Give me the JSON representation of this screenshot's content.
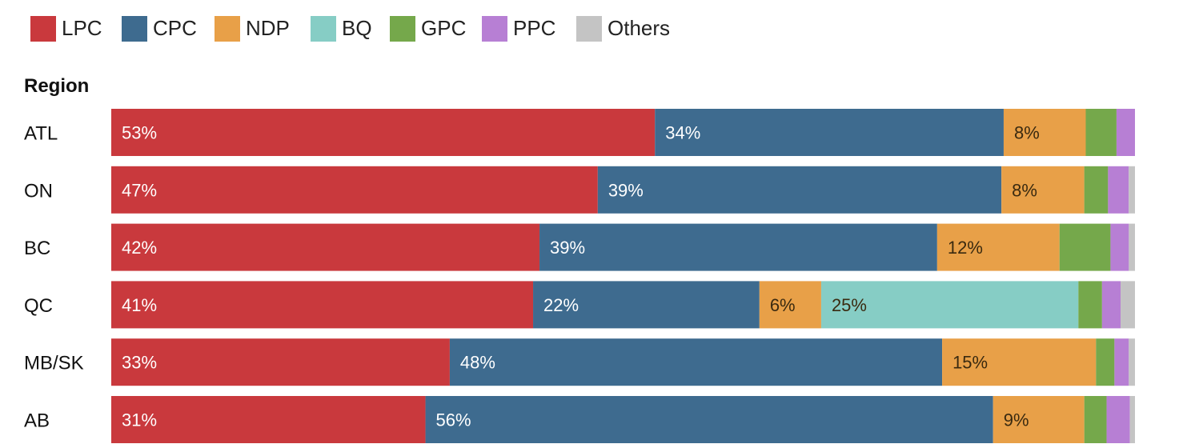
{
  "chart_data": {
    "type": "bar",
    "orientation": "horizontal",
    "stacked": true,
    "title": "",
    "ylabel": "Region",
    "xlim": [
      0,
      100
    ],
    "legend": "top-left",
    "grid": false,
    "categories": [
      "ATL",
      "ON",
      "BC",
      "QC",
      "MB/SK",
      "AB"
    ],
    "series": [
      {
        "name": "LPC",
        "color": "#c9393d",
        "values": [
          53,
          47,
          42,
          41,
          33,
          31
        ],
        "labels": [
          "53%",
          "47%",
          "42%",
          "41%",
          "33%",
          "31%"
        ]
      },
      {
        "name": "CPC",
        "color": "#3e6b8f",
        "values": [
          34,
          39,
          39,
          22,
          48,
          56
        ],
        "labels": [
          "34%",
          "39%",
          "39%",
          "22%",
          "48%",
          "56%"
        ]
      },
      {
        "name": "NDP",
        "color": "#e8a048",
        "values": [
          8,
          8,
          12,
          6,
          15,
          9
        ],
        "labels": [
          "8%",
          "8%",
          "12%",
          "6%",
          "15%",
          "9%"
        ]
      },
      {
        "name": "BQ",
        "color": "#86cdc5",
        "values": [
          0,
          0,
          0,
          25,
          0,
          0
        ],
        "labels": [
          "",
          "",
          "",
          "25%",
          "",
          ""
        ]
      },
      {
        "name": "GPC",
        "color": "#75a84b",
        "values": [
          3,
          2.3,
          5,
          2.3,
          1.8,
          2.2
        ],
        "labels": [
          "",
          "",
          "",
          "",
          "",
          ""
        ]
      },
      {
        "name": "PPC",
        "color": "#b77fd4",
        "values": [
          1.8,
          2,
          1.8,
          1.8,
          1.4,
          2.3
        ],
        "labels": [
          "",
          "",
          "",
          "",
          "",
          ""
        ]
      },
      {
        "name": "Others",
        "color": "#c4c4c4",
        "values": [
          0,
          0.6,
          0.6,
          1.4,
          0.6,
          0.5
        ],
        "labels": [
          "",
          "",
          "",
          "",
          "",
          ""
        ]
      }
    ]
  }
}
